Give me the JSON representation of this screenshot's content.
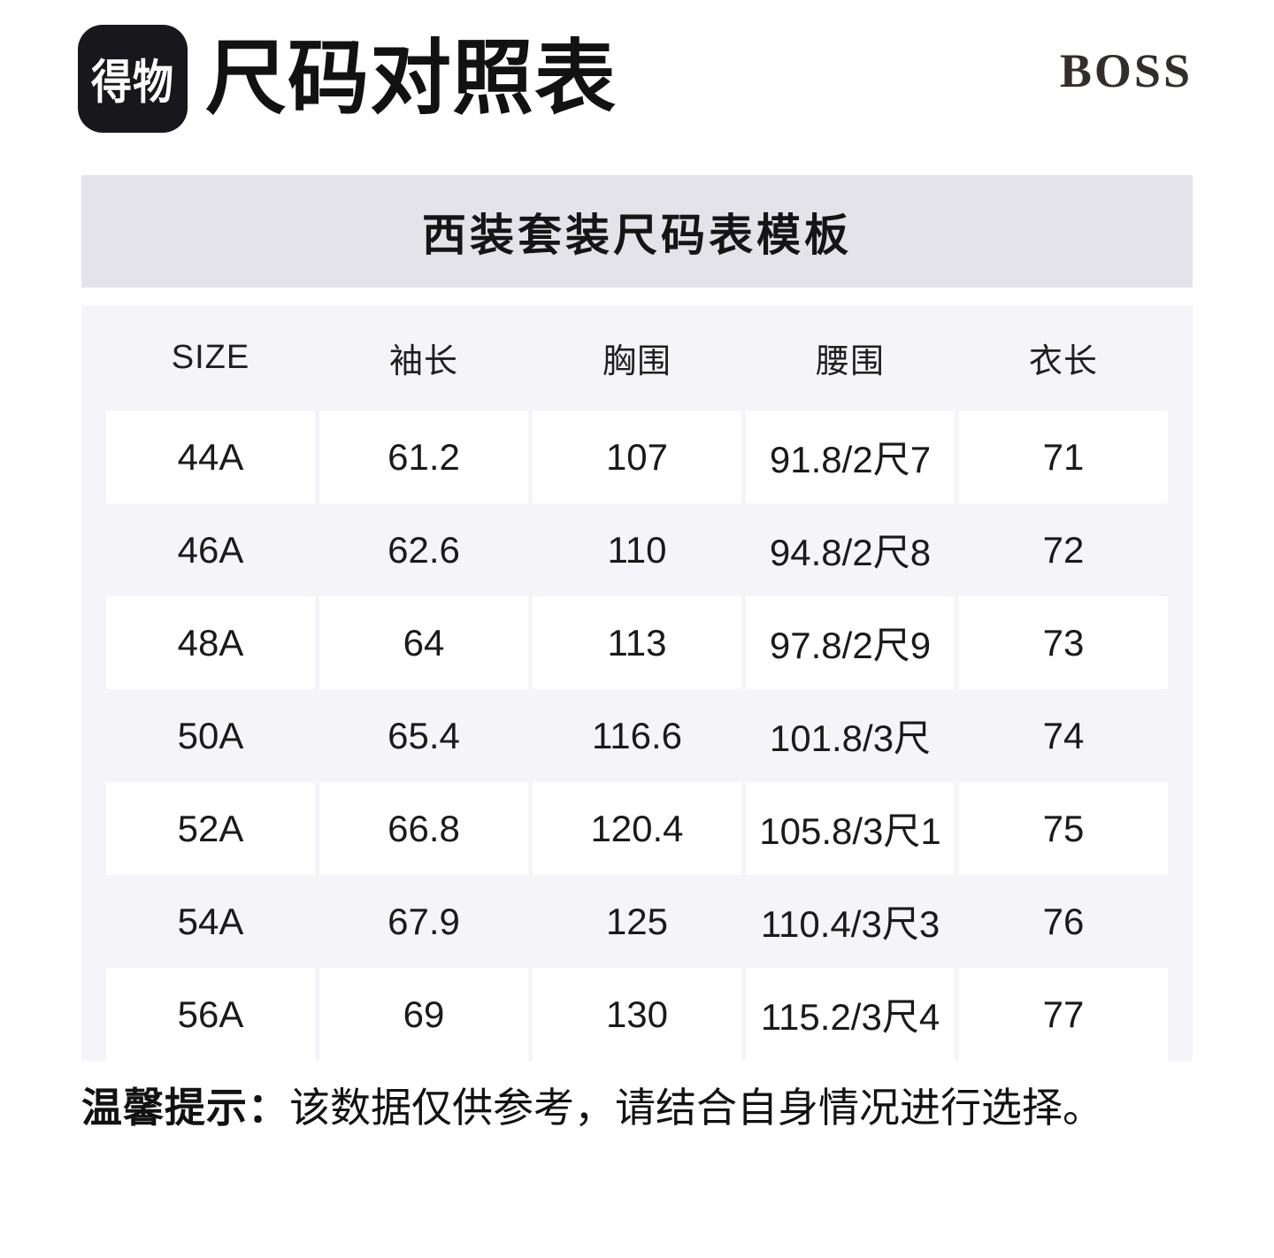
{
  "header": {
    "logo_text": "得物",
    "title": "尺码对照表",
    "brand": "BOSS"
  },
  "banner": {
    "title": "西装套装尺码表模板"
  },
  "size_table": {
    "columns": [
      "SIZE",
      "袖长",
      "胸围",
      "腰围",
      "衣长"
    ],
    "rows": [
      [
        "44A",
        "61.2",
        "107",
        "91.8/2尺7",
        "71"
      ],
      [
        "46A",
        "62.6",
        "110",
        "94.8/2尺8",
        "72"
      ],
      [
        "48A",
        "64",
        "113",
        "97.8/2尺9",
        "73"
      ],
      [
        "50A",
        "65.4",
        "116.6",
        "101.8/3尺",
        "74"
      ],
      [
        "52A",
        "66.8",
        "120.4",
        "105.8/3尺1",
        "75"
      ],
      [
        "54A",
        "67.9",
        "125",
        "110.4/3尺3",
        "76"
      ],
      [
        "56A",
        "69",
        "130",
        "115.2/3尺4",
        "77"
      ]
    ]
  },
  "footer": {
    "tip_label": "温馨提示：",
    "tip_text": "该数据仅供参考，请结合自身情况进行选择。"
  },
  "colors": {
    "logo_background": "#17171c",
    "logo_text": "#ffffff",
    "banner_background": "#e4e3e9",
    "table_background": "#f5f4f8",
    "cell_background": "#ffffff",
    "text": "#1a1a1a",
    "brand_text": "#332e2b"
  }
}
